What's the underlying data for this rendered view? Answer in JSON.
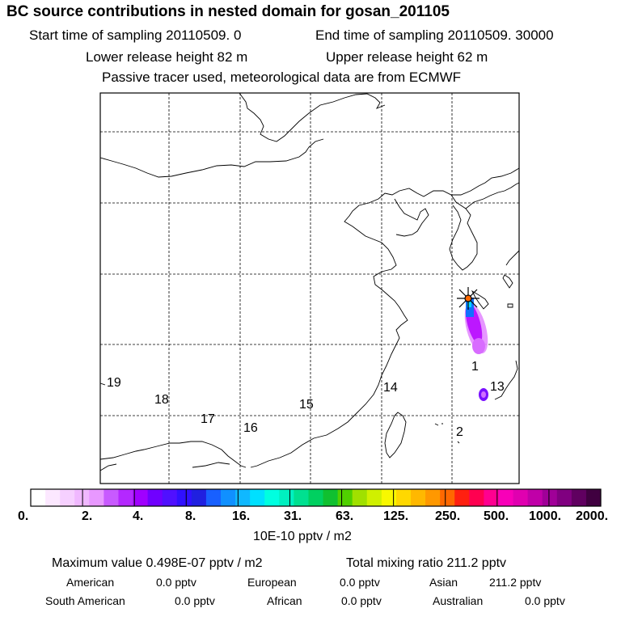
{
  "header": {
    "title": "BC  source contributions in nested domain for gosan_201105",
    "start_label": "Start time of sampling 20110509.    0",
    "end_label": "End time of sampling 20110509. 30000",
    "lower_label": "Lower release height   82 m",
    "upper_label": "Upper release height   62 m",
    "tracer_note": "Passive tracer used, meteorological data are from ECMWF"
  },
  "map": {
    "region_labels": [
      "19",
      "18",
      "17",
      "16",
      "15",
      "14",
      "1",
      "13",
      "2"
    ],
    "receptor_marker": "star-marker",
    "plume_color": "#b400ff"
  },
  "colorbar": {
    "colors": [
      "#ffffff",
      "#fce8ff",
      "#f6d0ff",
      "#f0b8ff",
      "#e898ff",
      "#c85aff",
      "#b428ff",
      "#a000ff",
      "#7000ff",
      "#5010ff",
      "#3010ff",
      "#2020e0",
      "#1860ff",
      "#1090ff",
      "#10b8ff",
      "#00e0ff",
      "#00ffe0",
      "#00f0c0",
      "#00e090",
      "#00d060",
      "#10c030",
      "#50d000",
      "#a0e000",
      "#d0f000",
      "#f8f800",
      "#ffd800",
      "#ffb800",
      "#ff9800",
      "#ff6800",
      "#ff2010",
      "#ff0050",
      "#ff0090",
      "#f800b8",
      "#e000b0",
      "#c000a8",
      "#a00098",
      "#800080",
      "#600060",
      "#400040"
    ],
    "tick_labels": [
      "0.",
      "2.",
      "4.",
      "8.",
      "16.",
      "31.",
      "63.",
      "125.",
      "250.",
      "500.",
      "1000.",
      "2000."
    ],
    "unit": "10E-10 pptv / m2"
  },
  "stats": {
    "max_value": "Maximum value  0.498E-07 pptv / m2",
    "total_ratio": "Total mixing ratio     211.2 pptv",
    "rows": [
      [
        [
          "American",
          "0.0 pptv"
        ],
        [
          "European",
          "0.0 pptv"
        ],
        [
          "Asian",
          "211.2 pptv"
        ]
      ],
      [
        [
          "South American",
          "0.0 pptv"
        ],
        [
          "African",
          "0.0 pptv"
        ],
        [
          "Australian",
          "0.0 pptv"
        ]
      ]
    ]
  }
}
